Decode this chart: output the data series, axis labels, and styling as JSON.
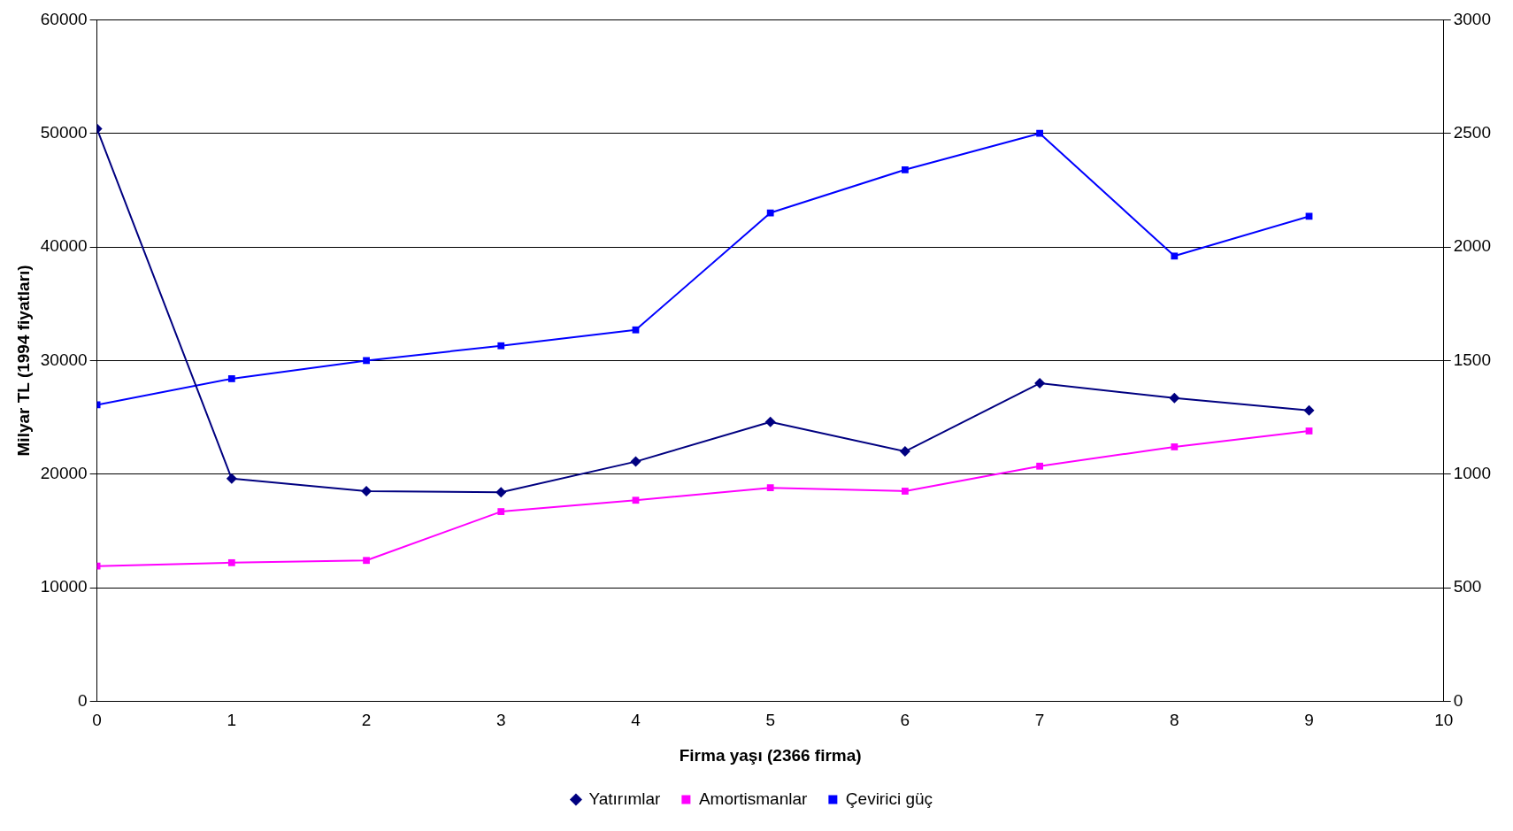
{
  "chart_data": {
    "type": "line",
    "xlabel": "Firma yaşı (2366 firma)",
    "ylabel": "Milyar TL (1994 fiyatları)",
    "x": [
      0,
      1,
      2,
      3,
      4,
      5,
      6,
      7,
      8,
      9
    ],
    "xlim": [
      0,
      10
    ],
    "xticks": [
      0,
      1,
      2,
      3,
      4,
      5,
      6,
      7,
      8,
      9,
      10
    ],
    "ylim": [
      0,
      60000
    ],
    "yticks": [
      0,
      10000,
      20000,
      30000,
      40000,
      50000,
      60000
    ],
    "y2lim": [
      0,
      3000
    ],
    "y2ticks": [
      0,
      500,
      1000,
      1500,
      2000,
      2500,
      3000
    ],
    "grid": "y",
    "legend": "bottom",
    "series": [
      {
        "name": "Yatırımlar",
        "color": "#000080",
        "marker": "diamond",
        "values": [
          50400,
          19600,
          18500,
          18400,
          21100,
          24600,
          22000,
          28000,
          26700,
          25600
        ]
      },
      {
        "name": "Amortismanlar",
        "color": "#ff00ff",
        "marker": "square",
        "axis": "y2",
        "values": [
          595,
          610,
          620,
          835,
          885,
          940,
          925,
          1035,
          1120,
          1190
        ]
      },
      {
        "name": "Çevirici güç",
        "color": "#0000ff",
        "marker": "square",
        "values": [
          26100,
          28400,
          30000,
          31300,
          32700,
          43000,
          46800,
          50000,
          39200,
          42700
        ]
      }
    ]
  }
}
